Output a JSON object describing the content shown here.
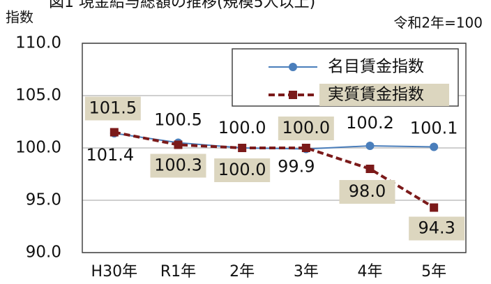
{
  "chart_data": {
    "type": "line",
    "title": "図1 現金給与総額の推移(規模5人以上)",
    "y_label": "指数",
    "note": "令和2年=100",
    "categories": [
      "H30年",
      "R1年",
      "2年",
      "3年",
      "4年",
      "5年"
    ],
    "series": [
      {
        "name": "名目賃金指数",
        "color": "#4a7ebb",
        "values": [
          101.4,
          100.5,
          100.0,
          99.9,
          100.2,
          100.1
        ],
        "value_labels": [
          "101.4",
          "100.5",
          "100.0",
          "99.9",
          "100.2",
          "100.1"
        ]
      },
      {
        "name": "実質賃金指数",
        "color": "#7b1a1a",
        "values": [
          101.5,
          100.3,
          100.0,
          100.0,
          98.0,
          94.3
        ],
        "value_labels": [
          "101.5",
          "100.3",
          "100.0",
          "100.0",
          "98.0",
          "94.3"
        ]
      }
    ],
    "ylim": [
      90,
      110
    ],
    "yticks": [
      {
        "value": 90,
        "label": "90.0"
      },
      {
        "value": 95,
        "label": "95.0"
      },
      {
        "value": 100,
        "label": "100.0"
      },
      {
        "value": 105,
        "label": "105.0"
      },
      {
        "value": 110,
        "label": "110.0"
      }
    ],
    "grid": true,
    "legend": "upper right"
  }
}
